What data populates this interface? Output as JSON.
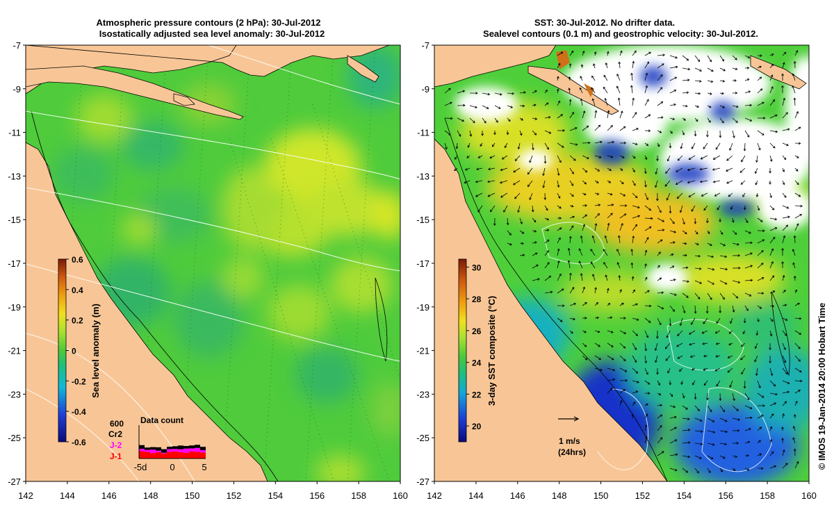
{
  "left_panel": {
    "title_line1": "Atmospheric pressure contours (2 hPa): 30-Jul-2012",
    "title_line2": "Isostatically adjusted sea level anomaly: 30-Jul-2012",
    "colorbar": {
      "label": "Sea level anomaly (m)",
      "ticks": [
        "0.6",
        "0.4",
        "0.2",
        "0",
        "-0.2",
        "-0.4",
        "-0.6"
      ],
      "range": [
        -0.6,
        0.6
      ]
    },
    "data_count": {
      "title": "Data count",
      "max_label": "600",
      "series_labels": [
        {
          "name": "Cr2",
          "color": "#000000"
        },
        {
          "name": "J-2",
          "color": "#ff00ff"
        },
        {
          "name": "J-1",
          "color": "#ff0000"
        }
      ],
      "x_ticks": [
        "-5d",
        "0",
        "5"
      ],
      "j1_counts": [
        220,
        200,
        160,
        190,
        150,
        200,
        210,
        190,
        170,
        210,
        200,
        180
      ],
      "j2_counts": [
        120,
        100,
        180,
        80,
        40,
        140,
        130,
        150,
        220,
        160,
        200,
        120
      ],
      "cr2_counts": [
        190,
        120,
        130,
        170,
        180,
        120,
        140,
        190,
        130,
        150,
        160,
        170
      ]
    }
  },
  "right_panel": {
    "title_line1": "SST: 30-Jul-2012. No drifter data.",
    "title_line2": "Sealevel contours (0.1 m) and geostrophic velocity: 30-Jul-2012.",
    "colorbar": {
      "label": "3-day SST composite (°C)",
      "ticks": [
        "30",
        "28",
        "26",
        "24",
        "22",
        "20"
      ],
      "range": [
        19,
        30.5
      ]
    },
    "scale_arrow": {
      "line1": "1 m/s",
      "line2": "(24hrs)"
    }
  },
  "axes": {
    "lat_ticks": [
      "-7",
      "-9",
      "-11",
      "-13",
      "-15",
      "-17",
      "-19",
      "-21",
      "-23",
      "-25",
      "-27"
    ],
    "lon_ticks": [
      "142",
      "144",
      "146",
      "148",
      "150",
      "152",
      "154",
      "156",
      "158",
      "160"
    ]
  },
  "credit": "© IMOS 19-Jan-2014 20:00 Hobart Time",
  "colors": {
    "land": "#f8c696",
    "ocean_mid": "#4ecf3a",
    "cloud": "#ffffff"
  }
}
